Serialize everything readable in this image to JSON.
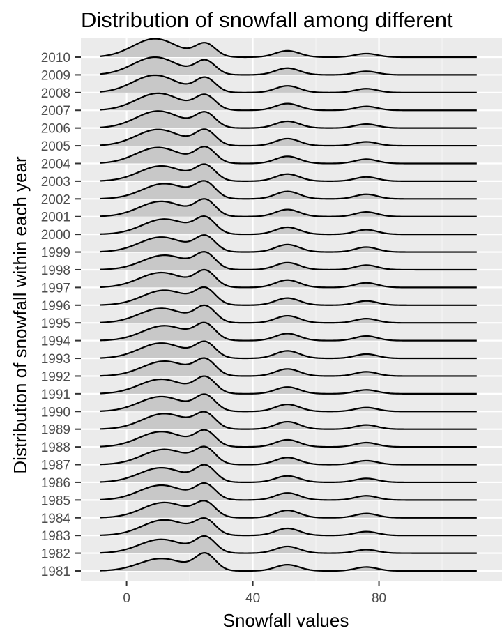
{
  "chart_data": {
    "type": "area",
    "subtype": "ridgeline-density",
    "title": "Distribution of snowfall among different",
    "xlabel": "Snowfall values",
    "ylabel": "Distribution of snowfall within each year",
    "x_ticks": [
      0,
      40,
      80
    ],
    "x_tick_labels": [
      "0",
      "40",
      "80"
    ],
    "xlim": [
      -14.5,
      119
    ],
    "density_x_range": [
      -8.5,
      111
    ],
    "years": [
      "1981",
      "1982",
      "1983",
      "1984",
      "1985",
      "1986",
      "1987",
      "1988",
      "1989",
      "1990",
      "1991",
      "1992",
      "1993",
      "1994",
      "1995",
      "1996",
      "1997",
      "1998",
      "1999",
      "2000",
      "2001",
      "2002",
      "2003",
      "2004",
      "2005",
      "2006",
      "2007",
      "2008",
      "2009",
      "2010"
    ],
    "ridge_scale_rows": 1,
    "series": [
      {
        "name": "1981",
        "bumps": [
          {
            "x": 11,
            "sd": 7,
            "h": 0.7
          },
          {
            "x": 25,
            "sd": 3.2,
            "h": 0.92
          },
          {
            "x": 51,
            "sd": 3.8,
            "h": 0.35
          },
          {
            "x": 76,
            "sd": 3.5,
            "h": 0.22
          }
        ]
      },
      {
        "name": "1982",
        "bumps": [
          {
            "x": 11,
            "sd": 7,
            "h": 0.78
          },
          {
            "x": 25,
            "sd": 3.2,
            "h": 0.86
          },
          {
            "x": 51,
            "sd": 3.8,
            "h": 0.38
          },
          {
            "x": 76,
            "sd": 3.5,
            "h": 0.2
          }
        ]
      },
      {
        "name": "1983",
        "bumps": [
          {
            "x": 12,
            "sd": 7,
            "h": 0.88
          },
          {
            "x": 25,
            "sd": 3.2,
            "h": 0.82
          },
          {
            "x": 51,
            "sd": 3.8,
            "h": 0.4
          },
          {
            "x": 76,
            "sd": 3.5,
            "h": 0.22
          }
        ]
      },
      {
        "name": "1984",
        "bumps": [
          {
            "x": 12,
            "sd": 7,
            "h": 0.86
          },
          {
            "x": 25,
            "sd": 3.2,
            "h": 0.8
          },
          {
            "x": 51,
            "sd": 3.8,
            "h": 0.42
          },
          {
            "x": 76,
            "sd": 3.5,
            "h": 0.24
          }
        ]
      },
      {
        "name": "1985",
        "bumps": [
          {
            "x": 11,
            "sd": 7,
            "h": 0.84
          },
          {
            "x": 25,
            "sd": 3.2,
            "h": 0.84
          },
          {
            "x": 51,
            "sd": 3.8,
            "h": 0.4
          },
          {
            "x": 76,
            "sd": 3.5,
            "h": 0.24
          }
        ]
      },
      {
        "name": "1986",
        "bumps": [
          {
            "x": 11,
            "sd": 7,
            "h": 0.82
          },
          {
            "x": 25,
            "sd": 3.2,
            "h": 0.88
          },
          {
            "x": 51,
            "sd": 3.8,
            "h": 0.36
          },
          {
            "x": 76,
            "sd": 3.5,
            "h": 0.22
          }
        ]
      },
      {
        "name": "1987",
        "bumps": [
          {
            "x": 12,
            "sd": 7,
            "h": 0.86
          },
          {
            "x": 25,
            "sd": 3.2,
            "h": 0.86
          },
          {
            "x": 51,
            "sd": 3.8,
            "h": 0.4
          },
          {
            "x": 76,
            "sd": 3.5,
            "h": 0.22
          }
        ]
      },
      {
        "name": "1988",
        "bumps": [
          {
            "x": 11,
            "sd": 7,
            "h": 0.86
          },
          {
            "x": 25,
            "sd": 3.2,
            "h": 0.84
          },
          {
            "x": 51,
            "sd": 3.8,
            "h": 0.4
          },
          {
            "x": 76,
            "sd": 3.5,
            "h": 0.24
          }
        ]
      },
      {
        "name": "1989",
        "bumps": [
          {
            "x": 12,
            "sd": 7,
            "h": 0.88
          },
          {
            "x": 25,
            "sd": 3.2,
            "h": 0.82
          },
          {
            "x": 51,
            "sd": 3.8,
            "h": 0.42
          },
          {
            "x": 76,
            "sd": 3.5,
            "h": 0.24
          }
        ]
      },
      {
        "name": "1990",
        "bumps": [
          {
            "x": 11,
            "sd": 7,
            "h": 0.84
          },
          {
            "x": 25,
            "sd": 3.2,
            "h": 0.86
          },
          {
            "x": 51,
            "sd": 3.8,
            "h": 0.4
          },
          {
            "x": 76,
            "sd": 3.5,
            "h": 0.22
          }
        ]
      },
      {
        "name": "1991",
        "bumps": [
          {
            "x": 11,
            "sd": 7,
            "h": 0.82
          },
          {
            "x": 25,
            "sd": 3.2,
            "h": 0.88
          },
          {
            "x": 51,
            "sd": 3.8,
            "h": 0.38
          },
          {
            "x": 76,
            "sd": 3.5,
            "h": 0.22
          }
        ]
      },
      {
        "name": "1992",
        "bumps": [
          {
            "x": 12,
            "sd": 7,
            "h": 0.84
          },
          {
            "x": 25,
            "sd": 3.2,
            "h": 0.86
          },
          {
            "x": 51,
            "sd": 3.8,
            "h": 0.4
          },
          {
            "x": 76,
            "sd": 3.5,
            "h": 0.24
          }
        ]
      },
      {
        "name": "1993",
        "bumps": [
          {
            "x": 11,
            "sd": 7,
            "h": 0.86
          },
          {
            "x": 25,
            "sd": 3.2,
            "h": 0.84
          },
          {
            "x": 51,
            "sd": 3.8,
            "h": 0.42
          },
          {
            "x": 76,
            "sd": 3.5,
            "h": 0.24
          }
        ]
      },
      {
        "name": "1994",
        "bumps": [
          {
            "x": 12,
            "sd": 7,
            "h": 0.84
          },
          {
            "x": 25,
            "sd": 3.2,
            "h": 0.86
          },
          {
            "x": 51,
            "sd": 3.8,
            "h": 0.4
          },
          {
            "x": 76,
            "sd": 3.5,
            "h": 0.26
          }
        ]
      },
      {
        "name": "1995",
        "bumps": [
          {
            "x": 11,
            "sd": 7,
            "h": 0.82
          },
          {
            "x": 25,
            "sd": 3.2,
            "h": 0.88
          },
          {
            "x": 51,
            "sd": 3.8,
            "h": 0.4
          },
          {
            "x": 76,
            "sd": 3.5,
            "h": 0.24
          }
        ]
      },
      {
        "name": "1996",
        "bumps": [
          {
            "x": 12,
            "sd": 7,
            "h": 0.84
          },
          {
            "x": 25,
            "sd": 3.2,
            "h": 0.86
          },
          {
            "x": 51,
            "sd": 3.8,
            "h": 0.4
          },
          {
            "x": 76,
            "sd": 3.5,
            "h": 0.24
          }
        ]
      },
      {
        "name": "1997",
        "bumps": [
          {
            "x": 11,
            "sd": 7,
            "h": 0.84
          },
          {
            "x": 25,
            "sd": 3.2,
            "h": 0.88
          },
          {
            "x": 51,
            "sd": 3.8,
            "h": 0.42
          },
          {
            "x": 76,
            "sd": 3.5,
            "h": 0.26
          }
        ]
      },
      {
        "name": "1998",
        "bumps": [
          {
            "x": 12,
            "sd": 7,
            "h": 0.82
          },
          {
            "x": 25,
            "sd": 3.2,
            "h": 0.86
          },
          {
            "x": 51,
            "sd": 3.8,
            "h": 0.4
          },
          {
            "x": 76,
            "sd": 3.5,
            "h": 0.26
          }
        ]
      },
      {
        "name": "1999",
        "bumps": [
          {
            "x": 11,
            "sd": 7,
            "h": 0.84
          },
          {
            "x": 25,
            "sd": 3.2,
            "h": 0.84
          },
          {
            "x": 51,
            "sd": 3.8,
            "h": 0.42
          },
          {
            "x": 76,
            "sd": 3.5,
            "h": 0.28
          }
        ]
      },
      {
        "name": "2000",
        "bumps": [
          {
            "x": 12,
            "sd": 7,
            "h": 0.86
          },
          {
            "x": 25,
            "sd": 3.2,
            "h": 0.86
          },
          {
            "x": 51,
            "sd": 3.8,
            "h": 0.4
          },
          {
            "x": 76,
            "sd": 3.5,
            "h": 0.26
          }
        ]
      },
      {
        "name": "2001",
        "bumps": [
          {
            "x": 11,
            "sd": 7,
            "h": 0.86
          },
          {
            "x": 25,
            "sd": 3.2,
            "h": 0.88
          },
          {
            "x": 51,
            "sd": 3.8,
            "h": 0.4
          },
          {
            "x": 76,
            "sd": 3.5,
            "h": 0.26
          }
        ]
      },
      {
        "name": "2002",
        "bumps": [
          {
            "x": 12,
            "sd": 7,
            "h": 0.86
          },
          {
            "x": 25,
            "sd": 3.2,
            "h": 0.86
          },
          {
            "x": 51,
            "sd": 3.8,
            "h": 0.42
          },
          {
            "x": 76,
            "sd": 3.5,
            "h": 0.26
          }
        ]
      },
      {
        "name": "2003",
        "bumps": [
          {
            "x": 11,
            "sd": 7,
            "h": 0.86
          },
          {
            "x": 25,
            "sd": 3.2,
            "h": 0.84
          },
          {
            "x": 51,
            "sd": 3.8,
            "h": 0.4
          },
          {
            "x": 76,
            "sd": 3.5,
            "h": 0.24
          }
        ]
      },
      {
        "name": "2004",
        "bumps": [
          {
            "x": 10,
            "sd": 7,
            "h": 0.9
          },
          {
            "x": 25,
            "sd": 3.2,
            "h": 0.86
          },
          {
            "x": 51,
            "sd": 3.8,
            "h": 0.4
          },
          {
            "x": 76,
            "sd": 3.5,
            "h": 0.24
          }
        ]
      },
      {
        "name": "2005",
        "bumps": [
          {
            "x": 10,
            "sd": 7,
            "h": 0.92
          },
          {
            "x": 25,
            "sd": 3.2,
            "h": 0.84
          },
          {
            "x": 51,
            "sd": 3.8,
            "h": 0.4
          },
          {
            "x": 76,
            "sd": 3.5,
            "h": 0.22
          }
        ]
      },
      {
        "name": "2006",
        "bumps": [
          {
            "x": 10,
            "sd": 7,
            "h": 0.96
          },
          {
            "x": 25,
            "sd": 3.2,
            "h": 0.82
          },
          {
            "x": 51,
            "sd": 3.8,
            "h": 0.38
          },
          {
            "x": 76,
            "sd": 3.5,
            "h": 0.22
          }
        ]
      },
      {
        "name": "2007",
        "bumps": [
          {
            "x": 10,
            "sd": 7,
            "h": 0.96
          },
          {
            "x": 25,
            "sd": 3.2,
            "h": 0.8
          },
          {
            "x": 51,
            "sd": 3.8,
            "h": 0.38
          },
          {
            "x": 76,
            "sd": 3.5,
            "h": 0.22
          }
        ]
      },
      {
        "name": "2008",
        "bumps": [
          {
            "x": 9,
            "sd": 7,
            "h": 0.98
          },
          {
            "x": 25,
            "sd": 3.2,
            "h": 0.8
          },
          {
            "x": 51,
            "sd": 3.8,
            "h": 0.38
          },
          {
            "x": 76,
            "sd": 3.5,
            "h": 0.22
          }
        ]
      },
      {
        "name": "2009",
        "bumps": [
          {
            "x": 9,
            "sd": 7,
            "h": 1.0
          },
          {
            "x": 25,
            "sd": 3.2,
            "h": 0.78
          },
          {
            "x": 51,
            "sd": 3.8,
            "h": 0.38
          },
          {
            "x": 76,
            "sd": 3.5,
            "h": 0.2
          }
        ]
      },
      {
        "name": "2010",
        "bumps": [
          {
            "x": 9,
            "sd": 7,
            "h": 1.04
          },
          {
            "x": 25,
            "sd": 3.2,
            "h": 0.74
          },
          {
            "x": 51,
            "sd": 3.8,
            "h": 0.36
          },
          {
            "x": 76,
            "sd": 3.5,
            "h": 0.2
          }
        ]
      }
    ],
    "grid": true,
    "legend": "none"
  },
  "colors": {
    "panel_background": "#EBEBEB",
    "grid_major": "#FFFFFF",
    "grid_minor": "#F5F5F5",
    "ridge_fill": "#C8C8C8",
    "ridge_line": "#000000",
    "tick_label": "#4D4D4D",
    "tick_mark": "#333333",
    "text": "#000000"
  }
}
